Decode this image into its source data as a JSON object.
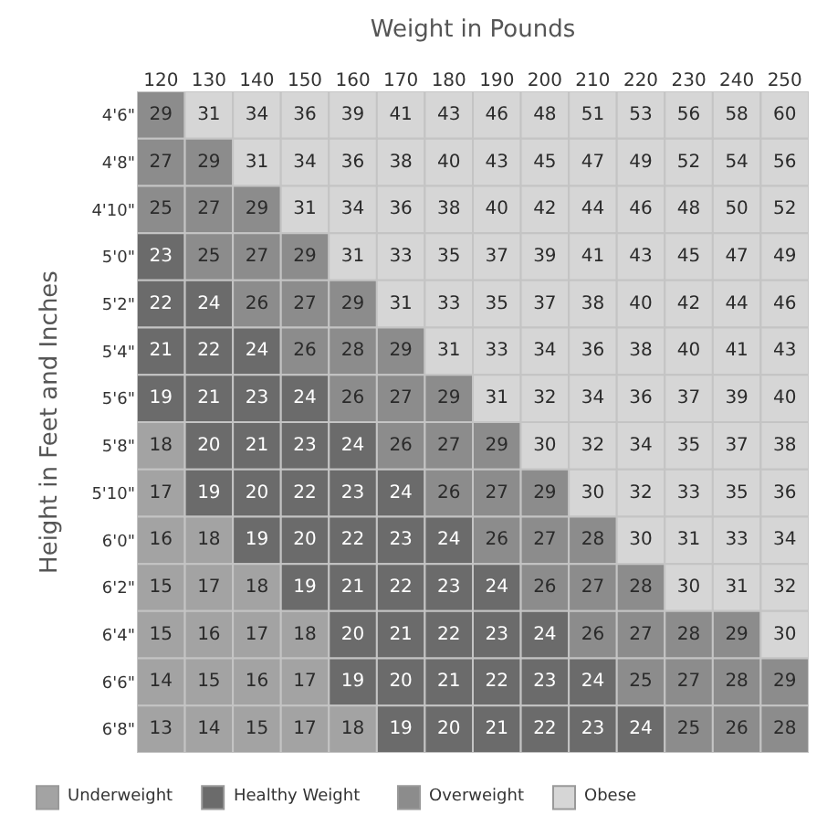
{
  "chart_data": {
    "type": "heatmap",
    "xlabel": "Weight in Pounds",
    "ylabel": "Height in Feet and Inches",
    "categories": [
      "120",
      "130",
      "140",
      "150",
      "160",
      "170",
      "180",
      "190",
      "200",
      "210",
      "220",
      "230",
      "240",
      "250"
    ],
    "y_categories": [
      "4'6\"",
      "4'8\"",
      "4'10\"",
      "5'0\"",
      "5'2\"",
      "5'4\"",
      "5'6\"",
      "5'8\"",
      "5'10\"",
      "6'0\"",
      "6'2\"",
      "6'4\"",
      "6'6\"",
      "6'8\""
    ],
    "cells": [
      [
        29,
        31,
        34,
        36,
        39,
        41,
        43,
        46,
        48,
        51,
        53,
        56,
        58,
        60
      ],
      [
        27,
        29,
        31,
        34,
        36,
        38,
        40,
        43,
        45,
        47,
        49,
        52,
        54,
        56
      ],
      [
        25,
        27,
        29,
        31,
        34,
        36,
        38,
        40,
        42,
        44,
        46,
        48,
        50,
        52
      ],
      [
        23,
        25,
        27,
        29,
        31,
        33,
        35,
        37,
        39,
        41,
        43,
        45,
        47,
        49
      ],
      [
        22,
        24,
        26,
        27,
        29,
        31,
        33,
        35,
        37,
        38,
        40,
        42,
        44,
        46
      ],
      [
        21,
        22,
        24,
        26,
        28,
        29,
        31,
        33,
        34,
        36,
        38,
        40,
        41,
        43
      ],
      [
        19,
        21,
        23,
        24,
        26,
        27,
        29,
        31,
        32,
        34,
        36,
        37,
        39,
        40
      ],
      [
        18,
        20,
        21,
        23,
        24,
        26,
        27,
        29,
        30,
        32,
        34,
        35,
        37,
        38
      ],
      [
        17,
        19,
        20,
        22,
        23,
        24,
        26,
        27,
        29,
        30,
        32,
        33,
        35,
        36
      ],
      [
        16,
        18,
        19,
        20,
        22,
        23,
        24,
        26,
        27,
        28,
        30,
        31,
        33,
        34
      ],
      [
        15,
        17,
        18,
        19,
        21,
        22,
        23,
        24,
        26,
        27,
        28,
        30,
        31,
        32
      ],
      [
        15,
        16,
        17,
        18,
        20,
        21,
        22,
        23,
        24,
        26,
        27,
        28,
        29,
        30
      ],
      [
        14,
        15,
        16,
        17,
        19,
        20,
        21,
        22,
        23,
        24,
        25,
        27,
        28,
        29
      ],
      [
        13,
        14,
        15,
        17,
        18,
        19,
        20,
        21,
        22,
        23,
        24,
        25,
        26,
        28
      ]
    ],
    "colors": [
      [
        "#8c8c8c",
        "#d6d6d6",
        "#d6d6d6",
        "#d6d6d6",
        "#d6d6d6",
        "#d6d6d6",
        "#d6d6d6",
        "#d6d6d6",
        "#d6d6d6",
        "#d6d6d6",
        "#d6d6d6",
        "#d6d6d6",
        "#d6d6d6",
        "#d6d6d6"
      ],
      [
        "#8c8c8c",
        "#8c8c8c",
        "#d6d6d6",
        "#d6d6d6",
        "#d6d6d6",
        "#d6d6d6",
        "#d6d6d6",
        "#d6d6d6",
        "#d6d6d6",
        "#d6d6d6",
        "#d6d6d6",
        "#d6d6d6",
        "#d6d6d6",
        "#d6d6d6"
      ],
      [
        "#8c8c8c",
        "#8c8c8c",
        "#8c8c8c",
        "#d6d6d6",
        "#d6d6d6",
        "#d6d6d6",
        "#d6d6d6",
        "#d6d6d6",
        "#d6d6d6",
        "#d6d6d6",
        "#d6d6d6",
        "#d6d6d6",
        "#d6d6d6",
        "#d6d6d6"
      ],
      [
        "#6b6b6b",
        "#8c8c8c",
        "#8c8c8c",
        "#8c8c8c",
        "#d6d6d6",
        "#d6d6d6",
        "#d6d6d6",
        "#d6d6d6",
        "#d6d6d6",
        "#d6d6d6",
        "#d6d6d6",
        "#d6d6d6",
        "#d6d6d6",
        "#d6d6d6"
      ],
      [
        "#6b6b6b",
        "#6b6b6b",
        "#8c8c8c",
        "#8c8c8c",
        "#8c8c8c",
        "#d6d6d6",
        "#d6d6d6",
        "#d6d6d6",
        "#d6d6d6",
        "#d6d6d6",
        "#d6d6d6",
        "#d6d6d6",
        "#d6d6d6",
        "#d6d6d6"
      ],
      [
        "#6b6b6b",
        "#6b6b6b",
        "#6b6b6b",
        "#8c8c8c",
        "#8c8c8c",
        "#8c8c8c",
        "#d6d6d6",
        "#d6d6d6",
        "#d6d6d6",
        "#d6d6d6",
        "#d6d6d6",
        "#d6d6d6",
        "#d6d6d6",
        "#d6d6d6"
      ],
      [
        "#6b6b6b",
        "#6b6b6b",
        "#6b6b6b",
        "#6b6b6b",
        "#8c8c8c",
        "#8c8c8c",
        "#8c8c8c",
        "#d6d6d6",
        "#d6d6d6",
        "#d6d6d6",
        "#d6d6d6",
        "#d6d6d6",
        "#d6d6d6",
        "#d6d6d6"
      ],
      [
        "#a3a3a3",
        "#6b6b6b",
        "#6b6b6b",
        "#6b6b6b",
        "#6b6b6b",
        "#8c8c8c",
        "#8c8c8c",
        "#8c8c8c",
        "#d6d6d6",
        "#d6d6d6",
        "#d6d6d6",
        "#d6d6d6",
        "#d6d6d6",
        "#d6d6d6"
      ],
      [
        "#a3a3a3",
        "#6b6b6b",
        "#6b6b6b",
        "#6b6b6b",
        "#6b6b6b",
        "#6b6b6b",
        "#8c8c8c",
        "#8c8c8c",
        "#8c8c8c",
        "#d6d6d6",
        "#d6d6d6",
        "#d6d6d6",
        "#d6d6d6",
        "#d6d6d6"
      ],
      [
        "#a3a3a3",
        "#a3a3a3",
        "#6b6b6b",
        "#6b6b6b",
        "#6b6b6b",
        "#6b6b6b",
        "#6b6b6b",
        "#8c8c8c",
        "#8c8c8c",
        "#8c8c8c",
        "#d6d6d6",
        "#d6d6d6",
        "#d6d6d6",
        "#d6d6d6"
      ],
      [
        "#a3a3a3",
        "#a3a3a3",
        "#a3a3a3",
        "#6b6b6b",
        "#6b6b6b",
        "#6b6b6b",
        "#6b6b6b",
        "#6b6b6b",
        "#8c8c8c",
        "#8c8c8c",
        "#8c8c8c",
        "#d6d6d6",
        "#d6d6d6",
        "#d6d6d6"
      ],
      [
        "#a3a3a3",
        "#a3a3a3",
        "#a3a3a3",
        "#a3a3a3",
        "#6b6b6b",
        "#6b6b6b",
        "#6b6b6b",
        "#6b6b6b",
        "#6b6b6b",
        "#8c8c8c",
        "#8c8c8c",
        "#8c8c8c",
        "#8c8c8c",
        "#d6d6d6"
      ],
      [
        "#a3a3a3",
        "#a3a3a3",
        "#a3a3a3",
        "#a3a3a3",
        "#6b6b6b",
        "#6b6b6b",
        "#6b6b6b",
        "#6b6b6b",
        "#6b6b6b",
        "#6b6b6b",
        "#8c8c8c",
        "#8c8c8c",
        "#8c8c8c",
        "#8c8c8c"
      ],
      [
        "#a3a3a3",
        "#a3a3a3",
        "#a3a3a3",
        "#a3a3a3",
        "#a3a3a3",
        "#6b6b6b",
        "#6b6b6b",
        "#6b6b6b",
        "#6b6b6b",
        "#6b6b6b",
        "#6b6b6b",
        "#8c8c8c",
        "#8c8c8c",
        "#8c8c8c"
      ]
    ],
    "data_labels": true,
    "annotations": [
      "Underweight",
      "Healthy Weight",
      "Overweight",
      "Obese"
    ]
  }
}
